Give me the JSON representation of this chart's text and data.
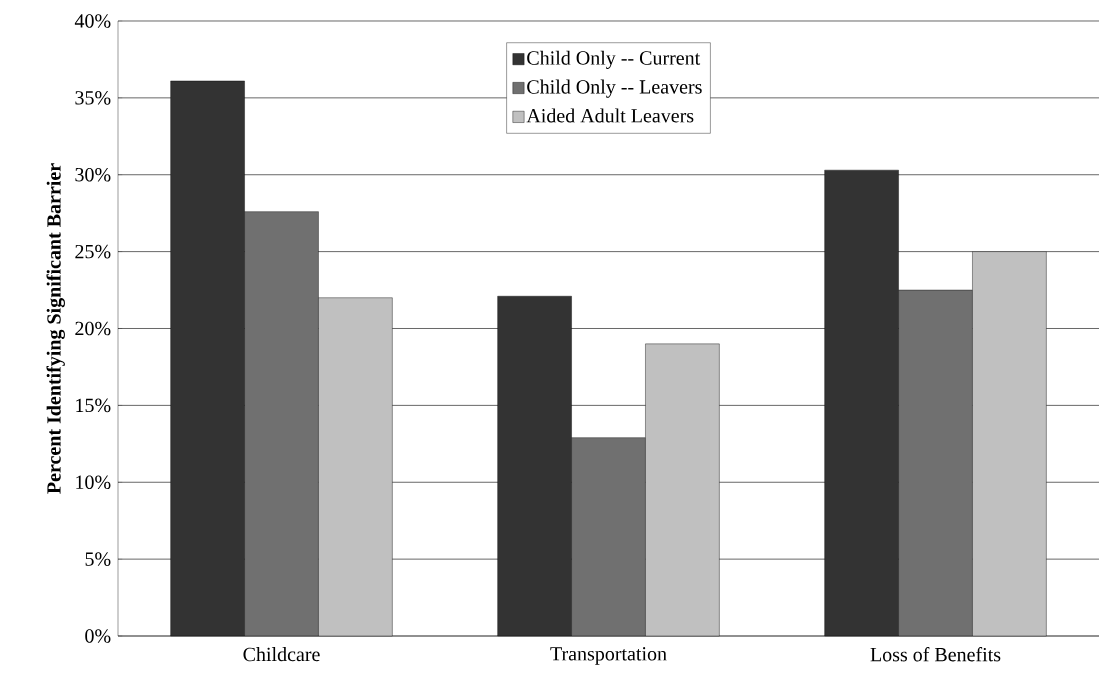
{
  "chart_data": {
    "type": "bar",
    "ylabel": "Percent Identifying Significant Barrier",
    "categories": [
      "Childcare",
      "Transportation",
      "Loss of Benefits"
    ],
    "series": [
      {
        "name": "Child Only -- Current",
        "color": "#333333",
        "values": [
          36.1,
          22.1,
          30.3
        ]
      },
      {
        "name": "Child Only -- Leavers",
        "color": "#707070",
        "values": [
          27.6,
          12.9,
          22.5
        ]
      },
      {
        "name": "Aided Adult Leavers",
        "color": "#c0c0c0",
        "values": [
          22.0,
          19.0,
          25.0
        ]
      }
    ],
    "ylim": [
      0,
      40
    ],
    "yticks": [
      {
        "value": 0,
        "label": "0%"
      },
      {
        "value": 5,
        "label": "5%"
      },
      {
        "value": 10,
        "label": "10%"
      },
      {
        "value": 15,
        "label": "15%"
      },
      {
        "value": 20,
        "label": "20%"
      },
      {
        "value": 25,
        "label": "25%"
      },
      {
        "value": 30,
        "label": "30%"
      },
      {
        "value": 35,
        "label": "35%"
      },
      {
        "value": 40,
        "label": "40%"
      }
    ],
    "grid": "y",
    "legend": "top"
  }
}
